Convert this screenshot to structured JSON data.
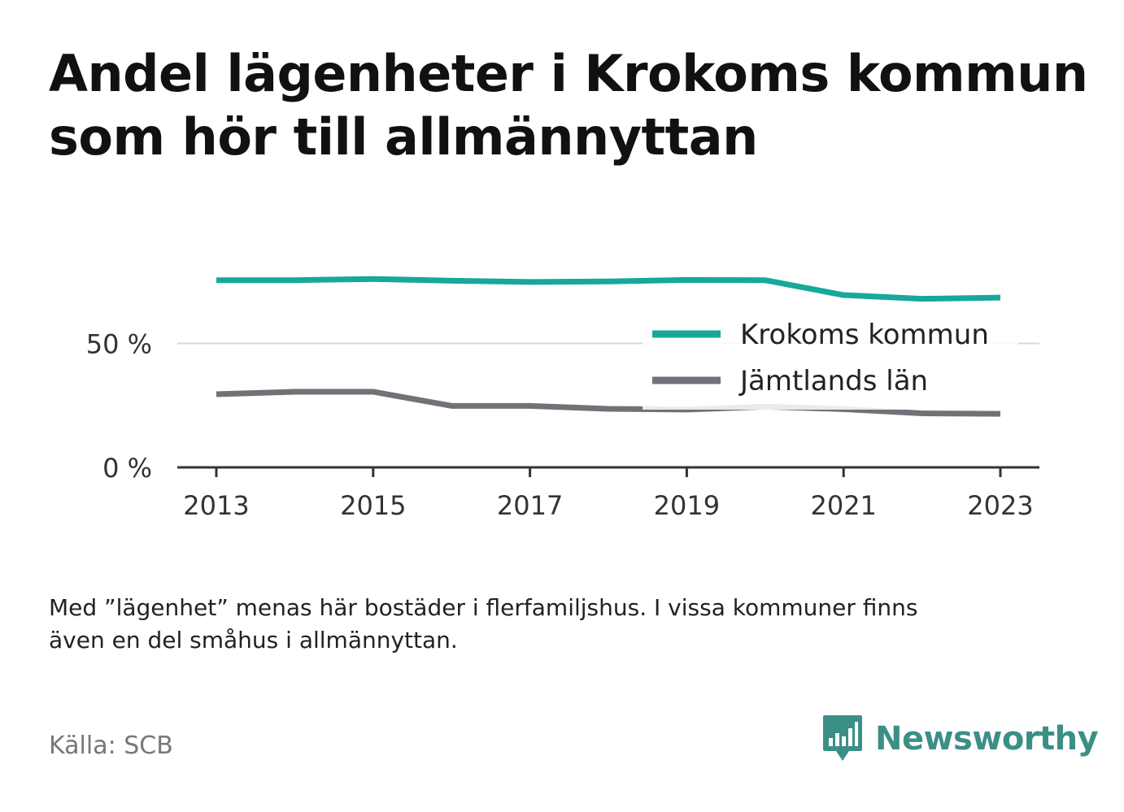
{
  "title_lines": [
    "Andel lägenheter i Krokoms kommun",
    "som hör till allmännyttan"
  ],
  "note_lines": [
    "Med ”lägenhet” menas här bostäder i flerfamiljshus. I vissa kommuner finns",
    "även en del småhus i allmännyttan."
  ],
  "source": "Källa: SCB",
  "brand": "Newsworthy",
  "colors": {
    "krokom": "#17a89a",
    "jamtland": "#727178",
    "brand": "#3b8f86",
    "grid": "#d9d9d9",
    "axis": "#333333"
  },
  "chart_data": {
    "type": "line",
    "x": [
      2013,
      2014,
      2015,
      2016,
      2017,
      2018,
      2019,
      2020,
      2021,
      2022,
      2023
    ],
    "xticks": [
      "2013",
      "2015",
      "2017",
      "2019",
      "2021",
      "2023"
    ],
    "yticks": [
      "0 %",
      "50 %"
    ],
    "ylim": [
      0,
      100
    ],
    "legend_position": "right",
    "grid": "horizontal",
    "series": [
      {
        "name": "Krokoms kommun",
        "color": "#17a89a",
        "values": [
          75.5,
          75.5,
          76,
          75.3,
          74.8,
          75,
          75.6,
          75.5,
          69.5,
          68,
          68.5
        ]
      },
      {
        "name": "Jämtlands län",
        "color": "#727178",
        "values": [
          29.5,
          30.5,
          30.5,
          24.8,
          24.8,
          23.6,
          23.3,
          24.5,
          23.5,
          21.8,
          21.6
        ]
      }
    ]
  }
}
